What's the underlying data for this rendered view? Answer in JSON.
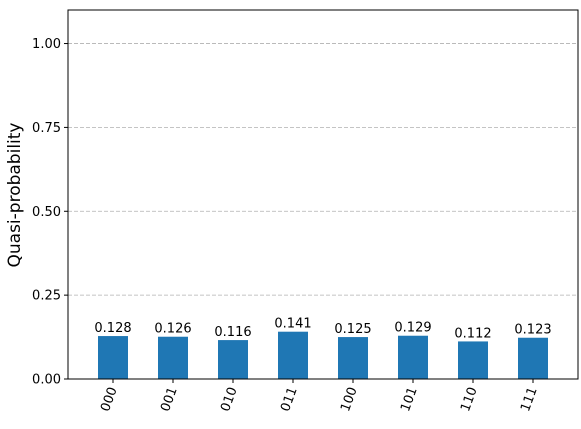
{
  "chart_data": {
    "type": "bar",
    "y_label": "Quasi-probability",
    "categories": [
      "000",
      "001",
      "010",
      "011",
      "100",
      "101",
      "110",
      "111"
    ],
    "values": [
      0.128,
      0.126,
      0.116,
      0.141,
      0.125,
      0.129,
      0.112,
      0.123
    ],
    "color": "#1f77b4",
    "ylim": [
      0,
      1.1
    ],
    "yticks": [
      {
        "value": 0,
        "label": "0.00"
      },
      {
        "value": 0.25,
        "label": "0.25"
      },
      {
        "value": 0.5,
        "label": "0.50"
      },
      {
        "value": 0.75,
        "label": "0.75"
      },
      {
        "value": 1,
        "label": "1.00"
      }
    ],
    "grid": true
  }
}
